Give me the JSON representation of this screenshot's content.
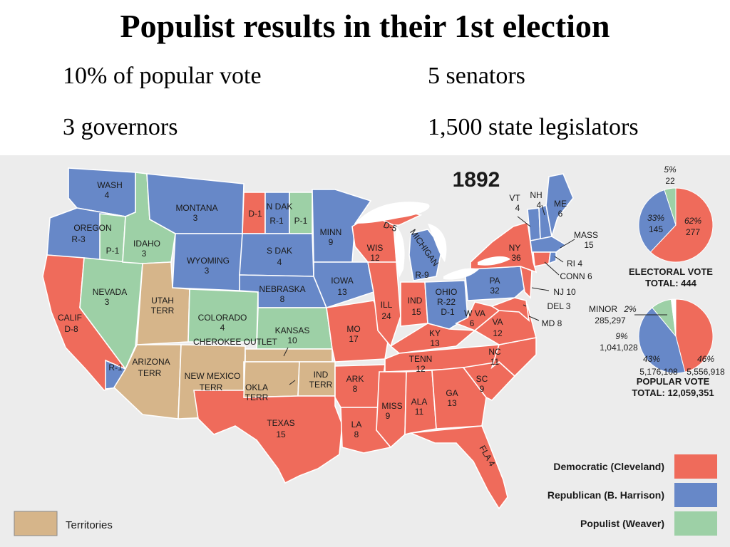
{
  "slide": {
    "title": "Populist results in their 1st election",
    "bullets": {
      "popular": "10% of popular vote",
      "senators": "5 senators",
      "governors": "3 governors",
      "legislators": "1,500 state legislators"
    }
  },
  "map": {
    "year": "1892",
    "colors": {
      "democratic": "#ef6b5b",
      "republican": "#6788c8",
      "populist": "#9dd0a6",
      "territory": "#d6b58a",
      "background": "#ececec",
      "lakes": "#ffffff"
    },
    "states": {
      "wash": [
        "WASH",
        "4"
      ],
      "oregon": [
        "OREGON",
        "R-3"
      ],
      "oregon_p": "P-1",
      "calif": [
        "CALIF",
        "D-8"
      ],
      "calif_r": "R-1",
      "nevada": [
        "NEVADA",
        "3"
      ],
      "idaho": [
        "IDAHO",
        "3"
      ],
      "montana": [
        "MONTANA",
        "3"
      ],
      "wyoming": [
        "WYOMING",
        "3"
      ],
      "utah": [
        "UTAH",
        "TERR"
      ],
      "colorado": [
        "COLORADO",
        "4"
      ],
      "arizona": [
        "ARIZONA",
        "TERR"
      ],
      "newmexico": [
        "NEW MEXICO",
        "TERR"
      ],
      "ndak": [
        "N DAK",
        "R-1"
      ],
      "ndak_d": "D-1",
      "ndak_p": "P-1",
      "sdak": [
        "S DAK",
        "4"
      ],
      "nebraska": [
        "NEBRASKA",
        "8"
      ],
      "kansas": [
        "KANSAS",
        "10"
      ],
      "cherokee": "CHEROKEE  OUTLET",
      "okla": [
        "OKLA",
        "TERR"
      ],
      "ind": [
        "IND",
        "TERR"
      ],
      "texas": [
        "TEXAS",
        "15"
      ],
      "minn": [
        "MINN",
        "9"
      ],
      "iowa": [
        "IOWA",
        "13"
      ],
      "mo": [
        "MO",
        "17"
      ],
      "ark": [
        "ARK",
        "8"
      ],
      "la": [
        "LA",
        "8"
      ],
      "wis": [
        "WIS",
        "12"
      ],
      "wis_d": "D-5",
      "ill": [
        "ILL",
        "24"
      ],
      "michigan": "MICHIGAN",
      "michigan_r": "R-9",
      "indiana": [
        "IND",
        "15"
      ],
      "ohio": [
        "OHIO",
        "R-22",
        "D-1"
      ],
      "ky": [
        "KY",
        "13"
      ],
      "tenn": [
        "TENN",
        "12"
      ],
      "miss": [
        "MISS",
        "9"
      ],
      "ala": [
        "ALA",
        "11"
      ],
      "ga": [
        "GA",
        "13"
      ],
      "fla": "FLA 4",
      "sc": [
        "SC",
        "9"
      ],
      "nc": [
        "NC",
        "11"
      ],
      "va": [
        "VA",
        "12"
      ],
      "wva": [
        "W VA",
        "6"
      ],
      "pa": [
        "PA",
        "32"
      ],
      "ny": [
        "NY",
        "36"
      ],
      "vt": [
        "VT",
        "4"
      ],
      "nh": [
        "NH",
        "4"
      ],
      "me": [
        "ME",
        "6"
      ],
      "mass": [
        "MASS",
        "15"
      ],
      "ri": "RI 4",
      "conn": "CONN 6",
      "nj": "NJ 10",
      "del": "DEL 3",
      "md": "MD 8"
    },
    "electoral_pie": {
      "slices": [
        {
          "party": "Democratic",
          "percent": "62%",
          "votes": "277",
          "share": 0.62
        },
        {
          "party": "Republican",
          "percent": "33%",
          "votes": "145",
          "share": 0.33
        },
        {
          "party": "Populist",
          "percent": "5%",
          "votes": "22",
          "share": 0.05
        }
      ],
      "label": "ELECTORAL  VOTE",
      "total": "TOTAL:  444"
    },
    "popular_pie": {
      "slices": [
        {
          "party": "Democratic",
          "percent": "46%",
          "votes": "5,556,918",
          "share": 0.46
        },
        {
          "party": "Republican",
          "percent": "43%",
          "votes": "5,176,108",
          "share": 0.43
        },
        {
          "party": "Populist",
          "percent": "9%",
          "votes": "1,041,028",
          "share": 0.09
        },
        {
          "party": "Minor",
          "percent": "2%",
          "votes": "285,297",
          "share": 0.02
        }
      ],
      "minor_label": "MINOR",
      "label": "POPULAR  VOTE",
      "total": "TOTAL:  12,059,351"
    },
    "legend": {
      "democratic": "Democratic (Cleveland)",
      "republican": "Republican (B. Harrison)",
      "populist": "Populist (Weaver)",
      "territories": "Territories"
    }
  }
}
